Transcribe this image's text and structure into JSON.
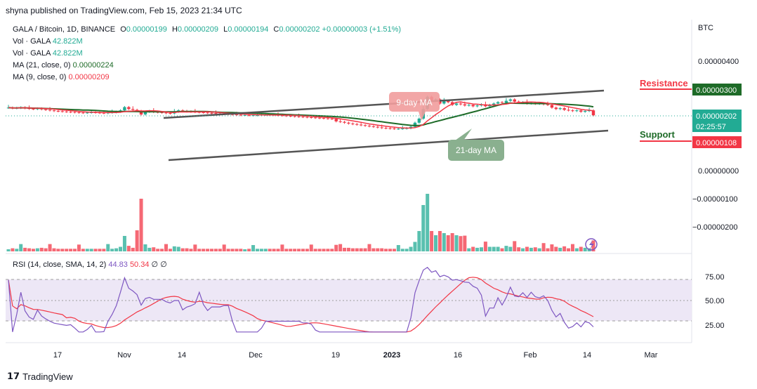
{
  "publisher": "shyna published on TradingView.com, Feb 15, 2023 21:34 UTC",
  "symbol_line": {
    "symbol": "GALA / Bitcoin, 1D, BINANCE",
    "o_label": "O",
    "o": "0.00000199",
    "h_label": "H",
    "h": "0.00000209",
    "l_label": "L",
    "l": "0.00000194",
    "c_label": "C",
    "c": "0.00000202",
    "change": "+0.00000003 (+1.51%)"
  },
  "indicators": [
    {
      "label": "Vol · GALA",
      "value": "42.822M"
    },
    {
      "label": "Vol · GALA",
      "value": "42.822M"
    },
    {
      "label": "MA (21, close, 0)",
      "value": "0.00000224"
    },
    {
      "label": "MA (9, close, 0)",
      "value": "0.00000209"
    }
  ],
  "rsi_legend": {
    "label": "RSI (14, close, SMA, 14, 2)",
    "rsi": "44.83",
    "sma": "50.34",
    "e1": "∅",
    "e2": "∅"
  },
  "currency": "BTC",
  "brand": "TradingView",
  "colors": {
    "up": "#22ab94",
    "down": "#f23645",
    "ma21": "#1e6b28",
    "ma9": "#f23645",
    "rsi": "#7e57c2",
    "rsi_band": "#ede7f6",
    "resistance": "#1e6b28",
    "support": "#f23645",
    "last_price": "#22ab94"
  },
  "chart_data": {
    "type": "candlestick",
    "price_axis": {
      "ticks": [
        {
          "label": "0.00000400",
          "value": 4e-06
        },
        {
          "label": "0.00000000",
          "value": 0.0
        },
        {
          "label": "−0.00000100",
          "value": -1e-06
        },
        {
          "label": "−0.00000200",
          "value": -2e-06
        }
      ]
    },
    "time_axis": {
      "labels": [
        "17",
        "Nov",
        "14",
        "Dec",
        "19",
        "2023",
        "16",
        "Feb",
        "14",
        "Mar"
      ]
    },
    "price_tags": [
      {
        "label": "0.00000300",
        "value": 3e-06,
        "kind": "resistance"
      },
      {
        "label": "0.00000202",
        "value": 2.02e-06,
        "kind": "last",
        "sub": "02:25:57"
      },
      {
        "label": "0.00000108",
        "value": 1.08e-06,
        "kind": "support"
      }
    ],
    "annotations": {
      "resistance": "Resistance",
      "support": "Support",
      "ma9_callout": "9-day MA",
      "ma21_callout": "21-day MA"
    },
    "close_series": [
      2.3,
      2.28,
      2.29,
      2.31,
      2.28,
      2.26,
      2.25,
      2.27,
      2.24,
      2.22,
      2.2,
      2.18,
      2.17,
      2.16,
      2.15,
      2.14,
      2.13,
      2.12,
      2.11,
      2.12,
      2.13,
      2.12,
      2.11,
      2.1,
      2.12,
      2.13,
      2.15,
      2.2,
      2.32,
      2.25,
      2.22,
      2.18,
      2.05,
      2.15,
      2.18,
      2.14,
      2.13,
      2.12,
      2.1,
      2.09,
      2.15,
      2.2,
      2.18,
      2.16,
      2.15,
      2.14,
      2.13,
      2.12,
      2.11,
      2.1,
      2.09,
      2.08,
      2.07,
      2.06,
      2.05,
      2.04,
      2.03,
      2.03,
      2.02,
      2.02,
      2.03,
      2.04,
      2.05,
      2.04,
      2.03,
      2.02,
      2.01,
      2.0,
      1.99,
      1.98,
      1.97,
      1.96,
      1.95,
      1.94,
      1.93,
      1.92,
      1.91,
      1.9,
      1.89,
      1.8,
      1.78,
      1.75,
      1.72,
      1.7,
      1.68,
      1.66,
      1.64,
      1.62,
      1.6,
      1.58,
      1.56,
      1.55,
      1.54,
      1.53,
      1.53,
      1.54,
      1.55,
      1.6,
      1.75,
      1.9,
      2.25,
      2.7,
      2.55,
      2.6,
      2.45,
      2.55,
      2.5,
      2.4,
      2.45,
      2.42,
      2.38,
      2.4,
      2.35,
      2.38,
      2.42,
      2.35,
      2.4,
      2.45,
      2.5,
      2.48,
      2.55,
      2.6,
      2.52,
      2.48,
      2.5,
      2.45,
      2.48,
      2.44,
      2.46,
      2.42,
      2.4,
      2.3,
      2.25,
      2.28,
      2.22,
      2.2,
      2.18,
      2.2,
      2.15,
      2.18,
      2.2,
      2.02
    ],
    "rsi_axis": {
      "ticks": [
        {
          "label": "75.00",
          "value": 75
        },
        {
          "label": "50.00",
          "value": 50
        },
        {
          "label": "25.00",
          "value": 25
        }
      ]
    }
  }
}
